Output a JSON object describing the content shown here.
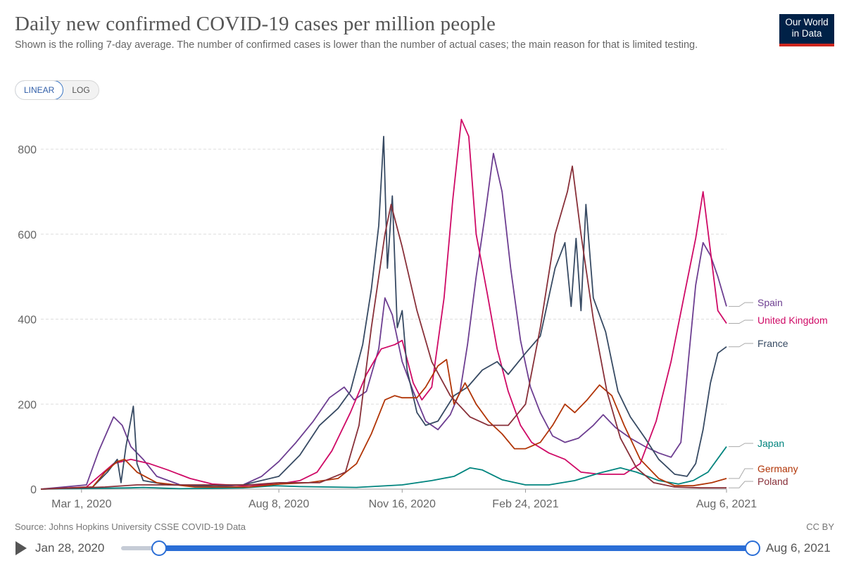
{
  "header": {
    "title": "Daily new confirmed COVID-19 cases per million people",
    "subtitle": "Shown is the rolling 7-day average. The number of confirmed cases is lower than the number of actual cases; the main reason for that is limited testing.",
    "logo_line1": "Our World",
    "logo_line2": "in Data"
  },
  "scale_toggle": {
    "linear": "LINEAR",
    "log": "LOG",
    "selected": "LINEAR"
  },
  "footer": {
    "source": "Source: Johns Hopkins University CSSE COVID-19 Data",
    "license": "CC BY"
  },
  "timeline": {
    "start_label": "Jan 28, 2020",
    "end_label": "Aug 6, 2021"
  },
  "chart_data": {
    "type": "line",
    "title": "Daily new confirmed COVID-19 cases per million people",
    "xlabel": "",
    "ylabel": "",
    "x_range": [
      "2020-01-28",
      "2021-08-06"
    ],
    "ylim": [
      0,
      880
    ],
    "y_ticks": [
      0,
      200,
      400,
      600,
      800
    ],
    "x_ticks": [
      {
        "date": "2020-03-01",
        "label": "Mar 1, 2020"
      },
      {
        "date": "2020-08-08",
        "label": "Aug 8, 2020"
      },
      {
        "date": "2020-11-16",
        "label": "Nov 16, 2020"
      },
      {
        "date": "2021-02-24",
        "label": "Feb 24, 2021"
      },
      {
        "date": "2021-08-06",
        "label": "Aug 6, 2021"
      }
    ],
    "grid": "horizontal dashed",
    "legend": "right, labels at line ends",
    "series": [
      {
        "name": "Spain",
        "color": "#6d3e91",
        "points": [
          [
            "2020-01-28",
            0
          ],
          [
            "2020-03-05",
            10
          ],
          [
            "2020-03-15",
            90
          ],
          [
            "2020-03-27",
            170
          ],
          [
            "2020-04-03",
            150
          ],
          [
            "2020-04-10",
            100
          ],
          [
            "2020-04-20",
            70
          ],
          [
            "2020-05-01",
            30
          ],
          [
            "2020-05-20",
            10
          ],
          [
            "2020-06-15",
            5
          ],
          [
            "2020-07-10",
            10
          ],
          [
            "2020-07-25",
            30
          ],
          [
            "2020-08-08",
            65
          ],
          [
            "2020-08-22",
            110
          ],
          [
            "2020-09-05",
            160
          ],
          [
            "2020-09-18",
            215
          ],
          [
            "2020-09-30",
            240
          ],
          [
            "2020-10-08",
            210
          ],
          [
            "2020-10-18",
            230
          ],
          [
            "2020-10-28",
            330
          ],
          [
            "2020-11-02",
            450
          ],
          [
            "2020-11-08",
            410
          ],
          [
            "2020-11-16",
            300
          ],
          [
            "2020-11-25",
            230
          ],
          [
            "2020-12-05",
            160
          ],
          [
            "2020-12-15",
            140
          ],
          [
            "2020-12-25",
            175
          ],
          [
            "2021-01-02",
            230
          ],
          [
            "2021-01-08",
            340
          ],
          [
            "2021-01-15",
            500
          ],
          [
            "2021-01-22",
            640
          ],
          [
            "2021-01-29",
            790
          ],
          [
            "2021-02-05",
            700
          ],
          [
            "2021-02-12",
            520
          ],
          [
            "2021-02-20",
            350
          ],
          [
            "2021-02-28",
            240
          ],
          [
            "2021-03-08",
            180
          ],
          [
            "2021-03-18",
            125
          ],
          [
            "2021-03-28",
            110
          ],
          [
            "2021-04-08",
            120
          ],
          [
            "2021-04-20",
            150
          ],
          [
            "2021-04-28",
            175
          ],
          [
            "2021-05-08",
            145
          ],
          [
            "2021-05-20",
            120
          ],
          [
            "2021-06-01",
            100
          ],
          [
            "2021-06-12",
            85
          ],
          [
            "2021-06-22",
            75
          ],
          [
            "2021-06-30",
            110
          ],
          [
            "2021-07-06",
            300
          ],
          [
            "2021-07-12",
            480
          ],
          [
            "2021-07-18",
            580
          ],
          [
            "2021-07-24",
            550
          ],
          [
            "2021-07-30",
            500
          ],
          [
            "2021-08-06",
            430
          ]
        ]
      },
      {
        "name": "United Kingdom",
        "color": "#cf0a66",
        "points": [
          [
            "2020-01-28",
            0
          ],
          [
            "2020-03-05",
            5
          ],
          [
            "2020-03-15",
            30
          ],
          [
            "2020-03-27",
            60
          ],
          [
            "2020-04-10",
            70
          ],
          [
            "2020-04-25",
            60
          ],
          [
            "2020-05-10",
            45
          ],
          [
            "2020-05-28",
            25
          ],
          [
            "2020-06-15",
            12
          ],
          [
            "2020-07-10",
            8
          ],
          [
            "2020-08-08",
            12
          ],
          [
            "2020-08-25",
            20
          ],
          [
            "2020-09-08",
            40
          ],
          [
            "2020-09-20",
            90
          ],
          [
            "2020-10-05",
            180
          ],
          [
            "2020-10-18",
            270
          ],
          [
            "2020-10-30",
            330
          ],
          [
            "2020-11-10",
            340
          ],
          [
            "2020-11-16",
            350
          ],
          [
            "2020-11-25",
            250
          ],
          [
            "2020-12-02",
            210
          ],
          [
            "2020-12-10",
            240
          ],
          [
            "2020-12-20",
            450
          ],
          [
            "2020-12-27",
            680
          ],
          [
            "2021-01-03",
            870
          ],
          [
            "2021-01-09",
            830
          ],
          [
            "2021-01-15",
            600
          ],
          [
            "2021-01-24",
            460
          ],
          [
            "2021-02-01",
            330
          ],
          [
            "2021-02-10",
            230
          ],
          [
            "2021-02-20",
            150
          ],
          [
            "2021-03-01",
            110
          ],
          [
            "2021-03-15",
            85
          ],
          [
            "2021-03-28",
            70
          ],
          [
            "2021-04-10",
            40
          ],
          [
            "2021-04-25",
            35
          ],
          [
            "2021-05-15",
            35
          ],
          [
            "2021-05-28",
            60
          ],
          [
            "2021-06-10",
            160
          ],
          [
            "2021-06-22",
            300
          ],
          [
            "2021-07-03",
            460
          ],
          [
            "2021-07-12",
            590
          ],
          [
            "2021-07-18",
            700
          ],
          [
            "2021-07-24",
            560
          ],
          [
            "2021-07-30",
            420
          ],
          [
            "2021-08-06",
            390
          ]
        ]
      },
      {
        "name": "France",
        "color": "#374a63",
        "points": [
          [
            "2020-01-28",
            0
          ],
          [
            "2020-03-10",
            5
          ],
          [
            "2020-03-22",
            40
          ],
          [
            "2020-03-30",
            70
          ],
          [
            "2020-04-02",
            15
          ],
          [
            "2020-04-06",
            100
          ],
          [
            "2020-04-12",
            195
          ],
          [
            "2020-04-15",
            60
          ],
          [
            "2020-04-20",
            20
          ],
          [
            "2020-05-10",
            10
          ],
          [
            "2020-06-10",
            8
          ],
          [
            "2020-07-10",
            10
          ],
          [
            "2020-08-08",
            30
          ],
          [
            "2020-08-25",
            80
          ],
          [
            "2020-09-10",
            150
          ],
          [
            "2020-09-25",
            190
          ],
          [
            "2020-10-05",
            230
          ],
          [
            "2020-10-15",
            340
          ],
          [
            "2020-10-22",
            470
          ],
          [
            "2020-10-28",
            620
          ],
          [
            "2020-11-01",
            830
          ],
          [
            "2020-11-04",
            520
          ],
          [
            "2020-11-08",
            690
          ],
          [
            "2020-11-12",
            380
          ],
          [
            "2020-11-16",
            420
          ],
          [
            "2020-11-20",
            280
          ],
          [
            "2020-11-28",
            180
          ],
          [
            "2020-12-05",
            150
          ],
          [
            "2020-12-15",
            160
          ],
          [
            "2020-12-28",
            220
          ],
          [
            "2021-01-08",
            240
          ],
          [
            "2021-01-20",
            280
          ],
          [
            "2021-02-01",
            300
          ],
          [
            "2021-02-10",
            270
          ],
          [
            "2021-02-24",
            320
          ],
          [
            "2021-03-08",
            360
          ],
          [
            "2021-03-20",
            520
          ],
          [
            "2021-03-28",
            580
          ],
          [
            "2021-04-02",
            430
          ],
          [
            "2021-04-06",
            590
          ],
          [
            "2021-04-10",
            420
          ],
          [
            "2021-04-14",
            670
          ],
          [
            "2021-04-20",
            450
          ],
          [
            "2021-04-30",
            370
          ],
          [
            "2021-05-10",
            230
          ],
          [
            "2021-05-20",
            170
          ],
          [
            "2021-06-01",
            120
          ],
          [
            "2021-06-12",
            70
          ],
          [
            "2021-06-25",
            35
          ],
          [
            "2021-07-05",
            30
          ],
          [
            "2021-07-12",
            60
          ],
          [
            "2021-07-18",
            140
          ],
          [
            "2021-07-24",
            250
          ],
          [
            "2021-07-30",
            320
          ],
          [
            "2021-08-06",
            335
          ]
        ]
      },
      {
        "name": "Japan",
        "color": "#00847e",
        "points": [
          [
            "2020-01-28",
            0
          ],
          [
            "2020-04-10",
            3
          ],
          [
            "2020-04-20",
            4
          ],
          [
            "2020-05-20",
            1
          ],
          [
            "2020-07-10",
            3
          ],
          [
            "2020-08-05",
            8
          ],
          [
            "2020-08-25",
            6
          ],
          [
            "2020-10-10",
            4
          ],
          [
            "2020-11-16",
            10
          ],
          [
            "2020-12-10",
            20
          ],
          [
            "2020-12-28",
            30
          ],
          [
            "2021-01-10",
            50
          ],
          [
            "2021-01-20",
            45
          ],
          [
            "2021-02-05",
            22
          ],
          [
            "2021-02-24",
            10
          ],
          [
            "2021-03-15",
            10
          ],
          [
            "2021-04-05",
            20
          ],
          [
            "2021-04-25",
            38
          ],
          [
            "2021-05-12",
            50
          ],
          [
            "2021-05-25",
            40
          ],
          [
            "2021-06-12",
            20
          ],
          [
            "2021-06-28",
            12
          ],
          [
            "2021-07-10",
            20
          ],
          [
            "2021-07-22",
            40
          ],
          [
            "2021-08-06",
            100
          ]
        ]
      },
      {
        "name": "Germany",
        "color": "#b13507",
        "points": [
          [
            "2020-01-28",
            0
          ],
          [
            "2020-03-10",
            5
          ],
          [
            "2020-03-20",
            40
          ],
          [
            "2020-03-30",
            65
          ],
          [
            "2020-04-05",
            70
          ],
          [
            "2020-04-15",
            40
          ],
          [
            "2020-05-01",
            15
          ],
          [
            "2020-06-01",
            5
          ],
          [
            "2020-07-15",
            5
          ],
          [
            "2020-08-08",
            12
          ],
          [
            "2020-09-01",
            15
          ],
          [
            "2020-09-25",
            25
          ],
          [
            "2020-10-10",
            60
          ],
          [
            "2020-10-22",
            130
          ],
          [
            "2020-11-02",
            210
          ],
          [
            "2020-11-10",
            220
          ],
          [
            "2020-11-16",
            215
          ],
          [
            "2020-11-28",
            215
          ],
          [
            "2020-12-05",
            240
          ],
          [
            "2020-12-15",
            290
          ],
          [
            "2020-12-22",
            305
          ],
          [
            "2020-12-28",
            200
          ],
          [
            "2021-01-06",
            250
          ],
          [
            "2021-01-15",
            200
          ],
          [
            "2021-01-25",
            160
          ],
          [
            "2021-02-05",
            130
          ],
          [
            "2021-02-15",
            95
          ],
          [
            "2021-02-24",
            95
          ],
          [
            "2021-03-08",
            110
          ],
          [
            "2021-03-18",
            150
          ],
          [
            "2021-03-28",
            200
          ],
          [
            "2021-04-05",
            180
          ],
          [
            "2021-04-15",
            210
          ],
          [
            "2021-04-25",
            245
          ],
          [
            "2021-05-05",
            220
          ],
          [
            "2021-05-15",
            150
          ],
          [
            "2021-05-28",
            70
          ],
          [
            "2021-06-12",
            25
          ],
          [
            "2021-06-25",
            8
          ],
          [
            "2021-07-10",
            8
          ],
          [
            "2021-07-25",
            15
          ],
          [
            "2021-08-06",
            25
          ]
        ]
      },
      {
        "name": "Poland",
        "color": "#883039",
        "points": [
          [
            "2020-01-28",
            0
          ],
          [
            "2020-03-20",
            5
          ],
          [
            "2020-04-15",
            10
          ],
          [
            "2020-05-20",
            10
          ],
          [
            "2020-07-15",
            10
          ],
          [
            "2020-08-08",
            15
          ],
          [
            "2020-09-10",
            15
          ],
          [
            "2020-10-01",
            40
          ],
          [
            "2020-10-12",
            150
          ],
          [
            "2020-10-22",
            380
          ],
          [
            "2020-11-02",
            600
          ],
          [
            "2020-11-07",
            670
          ],
          [
            "2020-11-16",
            570
          ],
          [
            "2020-11-28",
            420
          ],
          [
            "2020-12-10",
            300
          ],
          [
            "2020-12-25",
            220
          ],
          [
            "2021-01-10",
            170
          ],
          [
            "2021-01-25",
            150
          ],
          [
            "2021-02-10",
            150
          ],
          [
            "2021-02-24",
            200
          ],
          [
            "2021-03-08",
            380
          ],
          [
            "2021-03-20",
            600
          ],
          [
            "2021-03-30",
            700
          ],
          [
            "2021-04-03",
            760
          ],
          [
            "2021-04-10",
            600
          ],
          [
            "2021-04-20",
            400
          ],
          [
            "2021-05-01",
            230
          ],
          [
            "2021-05-12",
            120
          ],
          [
            "2021-05-25",
            50
          ],
          [
            "2021-06-08",
            15
          ],
          [
            "2021-06-25",
            5
          ],
          [
            "2021-07-15",
            3
          ],
          [
            "2021-08-06",
            3
          ]
        ]
      }
    ]
  }
}
